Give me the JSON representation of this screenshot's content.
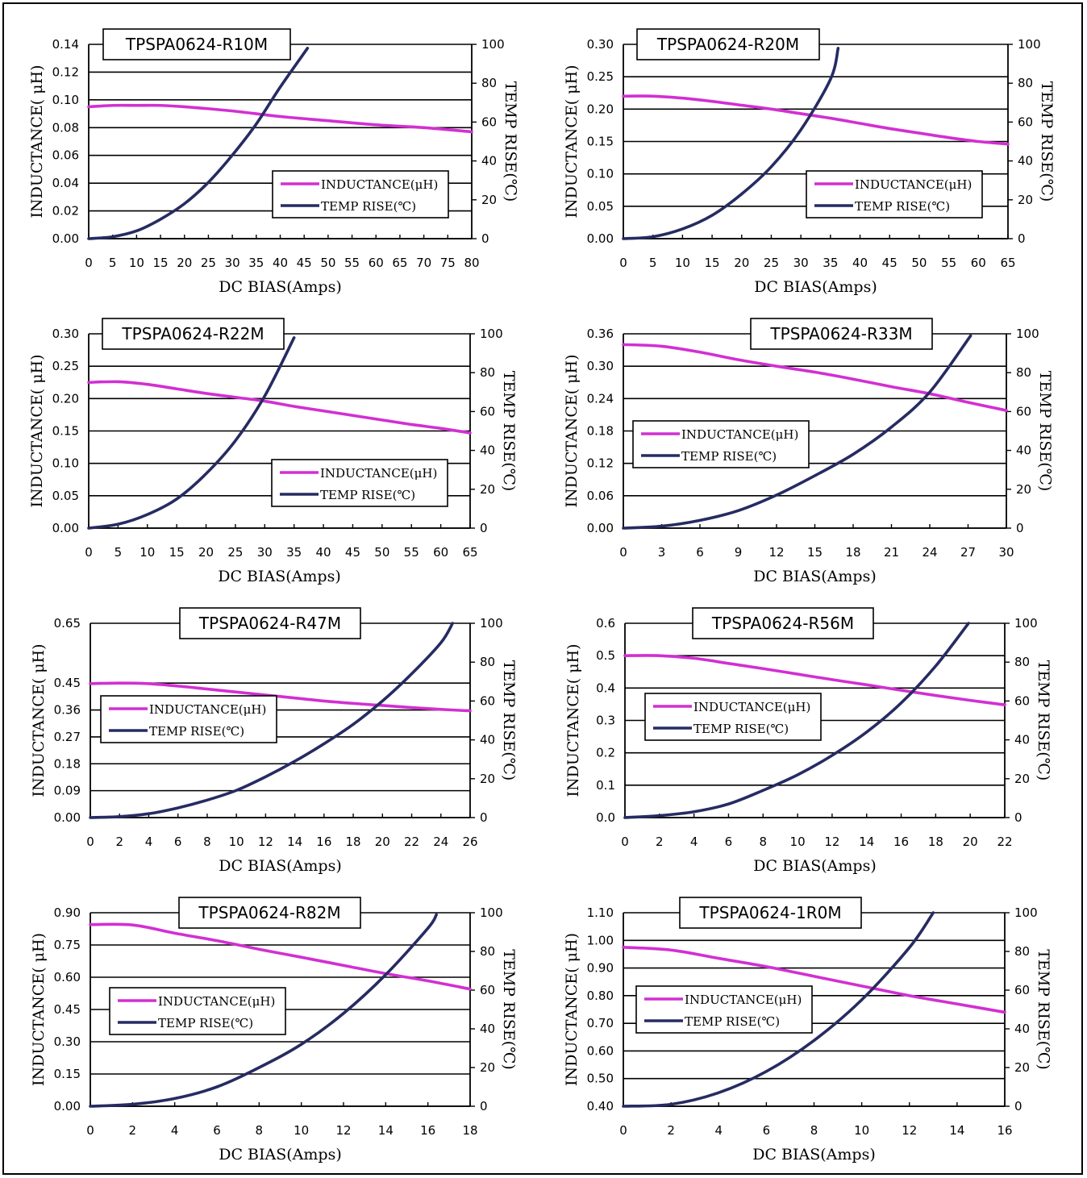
{
  "colors": {
    "inductance": "#d22fd2",
    "temp_rise": "#262b62",
    "grid": "#000000"
  },
  "chart_data": [
    {
      "type": "line",
      "title": "TPSPA0624-R10M",
      "xlabel": "DC BIAS(Amps)",
      "ylabel": "INDUCTANCE( μH)",
      "y2label": "TEMP RISE(℃)",
      "xlim": [
        0,
        80
      ],
      "ylim": [
        0,
        0.14
      ],
      "y2lim": [
        0,
        100
      ],
      "xticks": [
        "0",
        "5",
        "10",
        "15",
        "20",
        "25",
        "30",
        "35",
        "40",
        "45",
        "50",
        "55",
        "60",
        "65",
        "70",
        "75",
        "80"
      ],
      "yticks": [
        "0.00",
        "0.02",
        "0.04",
        "0.06",
        "0.08",
        "0.10",
        "0.12",
        "0.14"
      ],
      "y2ticks": [
        "0",
        "20",
        "40",
        "60",
        "80",
        "100"
      ],
      "legend": "center-right",
      "series": [
        {
          "name": "INDUCTANCE(μH)",
          "axis": "left",
          "x": [
            0,
            5,
            10,
            15,
            20,
            30,
            40,
            50,
            60,
            70,
            80
          ],
          "y": [
            0.095,
            0.096,
            0.096,
            0.096,
            0.095,
            0.092,
            0.088,
            0.085,
            0.082,
            0.08,
            0.077
          ]
        },
        {
          "name": "TEMP RISE(℃)",
          "axis": "right",
          "x": [
            0,
            5,
            10,
            15,
            20,
            25,
            30,
            35,
            40,
            45.7
          ],
          "y": [
            0,
            1,
            4,
            10,
            18,
            29,
            43,
            59,
            78,
            98
          ]
        }
      ]
    },
    {
      "type": "line",
      "title": "TPSPA0624-R20M",
      "xlabel": "DC BIAS(Amps)",
      "ylabel": "INDUCTANCE( μH)",
      "y2label": "TEMP RISE(℃)",
      "xlim": [
        0,
        65
      ],
      "ylim": [
        0,
        0.3
      ],
      "y2lim": [
        0,
        100
      ],
      "xticks": [
        "0",
        "5",
        "10",
        "15",
        "20",
        "25",
        "30",
        "35",
        "40",
        "45",
        "50",
        "55",
        "60",
        "65"
      ],
      "yticks": [
        "0.00",
        "0.05",
        "0.10",
        "0.15",
        "0.20",
        "0.25",
        "0.30"
      ],
      "y2ticks": [
        "0",
        "20",
        "40",
        "60",
        "80",
        "100"
      ],
      "legend": "center-right",
      "series": [
        {
          "name": "INDUCTANCE(μH)",
          "axis": "left",
          "x": [
            0,
            5,
            10,
            15,
            20,
            25,
            30,
            35,
            40,
            45,
            50,
            55,
            60,
            65
          ],
          "y": [
            0.22,
            0.22,
            0.217,
            0.212,
            0.206,
            0.2,
            0.193,
            0.186,
            0.178,
            0.17,
            0.163,
            0.156,
            0.15,
            0.146
          ]
        },
        {
          "name": "TEMP RISE(℃)",
          "axis": "right",
          "x": [
            0,
            5,
            10,
            15,
            20,
            25,
            30,
            35,
            36.3
          ],
          "y": [
            0,
            1,
            5,
            12,
            23,
            37,
            56,
            82,
            98
          ]
        }
      ]
    },
    {
      "type": "line",
      "title": "TPSPA0624-R22M",
      "xlabel": "DC BIAS(Amps)",
      "ylabel": "INDUCTANCE( μH)",
      "y2label": "TEMP RISE(℃)",
      "xlim": [
        0,
        65
      ],
      "ylim": [
        0,
        0.3
      ],
      "y2lim": [
        0,
        100
      ],
      "xticks": [
        "0",
        "5",
        "10",
        "15",
        "20",
        "25",
        "30",
        "35",
        "40",
        "45",
        "50",
        "55",
        "60",
        "65"
      ],
      "yticks": [
        "0.00",
        "0.05",
        "0.10",
        "0.15",
        "0.20",
        "0.25",
        "0.30"
      ],
      "y2ticks": [
        "0",
        "20",
        "40",
        "60",
        "80",
        "100"
      ],
      "legend": "center-right",
      "series": [
        {
          "name": "INDUCTANCE(μH)",
          "axis": "left",
          "x": [
            0,
            5,
            10,
            15,
            20,
            25,
            30,
            35,
            40,
            45,
            50,
            55,
            60,
            65
          ],
          "y": [
            0.225,
            0.226,
            0.222,
            0.215,
            0.208,
            0.202,
            0.196,
            0.188,
            0.181,
            0.174,
            0.167,
            0.16,
            0.154,
            0.147
          ]
        },
        {
          "name": "TEMP RISE(℃)",
          "axis": "right",
          "x": [
            0,
            5,
            10,
            15,
            20,
            25,
            30,
            35
          ],
          "y": [
            0,
            2,
            7,
            15,
            28,
            45,
            68,
            98
          ]
        }
      ]
    },
    {
      "type": "line",
      "title": "TPSPA0624-R33M",
      "xlabel": "DC BIAS(Amps)",
      "ylabel": "INDUCTANCE( μH)",
      "y2label": "TEMP RISE(℃)",
      "xlim": [
        0,
        30
      ],
      "ylim": [
        0,
        0.36
      ],
      "y2lim": [
        0,
        100
      ],
      "xticks": [
        "0",
        "3",
        "6",
        "9",
        "12",
        "15",
        "18",
        "21",
        "24",
        "27",
        "30"
      ],
      "yticks": [
        "0.00",
        "0.06",
        "0.12",
        "0.18",
        "0.24",
        "0.30",
        "0.36"
      ],
      "y2ticks": [
        "0",
        "20",
        "40",
        "60",
        "80",
        "100"
      ],
      "legend": "center-left",
      "series": [
        {
          "name": "INDUCTANCE(μH)",
          "axis": "left",
          "x": [
            0,
            3,
            6,
            9,
            12,
            15,
            18,
            21,
            24,
            27,
            30
          ],
          "y": [
            0.34,
            0.337,
            0.326,
            0.312,
            0.3,
            0.289,
            0.276,
            0.262,
            0.249,
            0.233,
            0.218
          ]
        },
        {
          "name": "TEMP RISE(℃)",
          "axis": "right",
          "x": [
            0,
            3,
            6,
            9,
            12,
            15,
            18,
            21,
            24,
            27.2
          ],
          "y": [
            0,
            1,
            4,
            9,
            17,
            27,
            38,
            52,
            70,
            99
          ]
        }
      ]
    },
    {
      "type": "line",
      "title": "TPSPA0624-R47M",
      "xlabel": "DC BIAS(Amps)",
      "ylabel": "INDUCTANCE( μH)",
      "y2label": "TEMP RISE(℃)",
      "xlim": [
        0,
        26
      ],
      "ylim": [
        0,
        0.65
      ],
      "y2lim": [
        0,
        100
      ],
      "xticks": [
        "0",
        "2",
        "4",
        "6",
        "8",
        "10",
        "12",
        "14",
        "16",
        "18",
        "20",
        "22",
        "24",
        "26"
      ],
      "yticks": [
        "0.00",
        "0.09",
        "0.18",
        "0.27",
        "0.36",
        "0.45",
        "0.65"
      ],
      "yticks_values": [
        0,
        0.09,
        0.18,
        0.27,
        0.36,
        0.45,
        0.65
      ],
      "y2ticks": [
        "0",
        "20",
        "40",
        "60",
        "80",
        "100"
      ],
      "legend": "center-left",
      "series": [
        {
          "name": "INDUCTANCE(μH)",
          "axis": "left",
          "x": [
            0,
            2,
            4,
            6,
            8,
            10,
            12,
            14,
            16,
            18,
            20,
            22,
            24,
            26
          ],
          "y": [
            0.448,
            0.45,
            0.448,
            0.44,
            0.43,
            0.42,
            0.41,
            0.4,
            0.39,
            0.382,
            0.375,
            0.368,
            0.362,
            0.357
          ]
        },
        {
          "name": "TEMP RISE(℃)",
          "axis": "right",
          "x": [
            0,
            2,
            4,
            6,
            8,
            10,
            12,
            14,
            16,
            18,
            20,
            22,
            24,
            24.8
          ],
          "y": [
            0,
            0.5,
            2,
            5,
            9,
            14,
            21,
            29,
            38,
            48,
            60,
            74,
            90,
            100
          ]
        }
      ]
    },
    {
      "type": "line",
      "title": "TPSPA0624-R56M",
      "xlabel": "DC BIAS(Amps)",
      "ylabel": "INDUCTANCE( μH)",
      "y2label": "TEMP RISE(℃)",
      "xlim": [
        0,
        22
      ],
      "ylim": [
        0,
        0.6
      ],
      "y2lim": [
        0,
        100
      ],
      "xticks": [
        "0",
        "2",
        "4",
        "6",
        "8",
        "10",
        "12",
        "14",
        "16",
        "18",
        "20",
        "22"
      ],
      "yticks": [
        "0.0",
        "0.1",
        "0.2",
        "0.3",
        "0.4",
        "0.5",
        "0.6"
      ],
      "y2ticks": [
        "0",
        "20",
        "40",
        "60",
        "80",
        "100"
      ],
      "legend": "center-left",
      "series": [
        {
          "name": "INDUCTANCE(μH)",
          "axis": "left",
          "x": [
            0,
            2,
            4,
            6,
            8,
            10,
            12,
            14,
            16,
            18,
            20,
            22
          ],
          "y": [
            0.5,
            0.5,
            0.492,
            0.476,
            0.46,
            0.443,
            0.426,
            0.41,
            0.393,
            0.377,
            0.362,
            0.348
          ]
        },
        {
          "name": "TEMP RISE(℃)",
          "axis": "right",
          "x": [
            0,
            2,
            4,
            6,
            8,
            10,
            12,
            14,
            16,
            18,
            19.9
          ],
          "y": [
            0,
            1,
            3,
            7,
            14,
            22,
            32,
            44,
            59,
            78,
            100
          ]
        }
      ]
    },
    {
      "type": "line",
      "title": "TPSPA0624-R82M",
      "xlabel": "DC BIAS(Amps)",
      "ylabel": "INDUCTANCE( μH)",
      "y2label": "TEMP RISE(℃)",
      "xlim": [
        0,
        18
      ],
      "ylim": [
        0,
        0.9
      ],
      "y2lim": [
        0,
        100
      ],
      "xticks": [
        "0",
        "2",
        "4",
        "6",
        "8",
        "10",
        "12",
        "14",
        "16",
        "18"
      ],
      "yticks": [
        "0.00",
        "0.15",
        "0.30",
        "0.45",
        "0.60",
        "0.75",
        "0.90"
      ],
      "y2ticks": [
        "0",
        "20",
        "40",
        "60",
        "80",
        "100"
      ],
      "legend": "center-left",
      "series": [
        {
          "name": "INDUCTANCE(μH)",
          "axis": "left",
          "x": [
            0,
            2,
            4,
            6,
            8,
            10,
            12,
            14,
            16,
            18
          ],
          "y": [
            0.845,
            0.843,
            0.805,
            0.77,
            0.73,
            0.693,
            0.655,
            0.617,
            0.583,
            0.545
          ]
        },
        {
          "name": "TEMP RISE(℃)",
          "axis": "right",
          "x": [
            0,
            2,
            4,
            6,
            8,
            10,
            12,
            14,
            16,
            16.4
          ],
          "y": [
            0,
            1,
            4,
            10,
            20,
            32,
            48,
            68,
            92,
            99
          ]
        }
      ]
    },
    {
      "type": "line",
      "title": "TPSPA0624-1R0M",
      "xlabel": "DC BIAS(Amps)",
      "ylabel": "INDUCTANCE( μH)",
      "y2label": "TEMP RISE(℃)",
      "xlim": [
        0,
        16
      ],
      "ylim": [
        0.4,
        1.1
      ],
      "y2lim": [
        0,
        100
      ],
      "xticks": [
        "0",
        "2",
        "4",
        "6",
        "8",
        "10",
        "12",
        "14",
        "16"
      ],
      "yticks": [
        "0.40",
        "0.50",
        "0.60",
        "0.70",
        "0.80",
        "0.90",
        "1.00",
        "1.10"
      ],
      "y2ticks": [
        "0",
        "20",
        "40",
        "60",
        "80",
        "100"
      ],
      "legend": "center-left",
      "series": [
        {
          "name": "INDUCTANCE(μH)",
          "axis": "left",
          "x": [
            0,
            2,
            4,
            6,
            8,
            10,
            12,
            14,
            16
          ],
          "y": [
            0.975,
            0.965,
            0.935,
            0.905,
            0.87,
            0.835,
            0.8,
            0.77,
            0.74
          ]
        },
        {
          "name": "TEMP RISE(℃)",
          "axis": "right",
          "x": [
            0,
            2,
            4,
            6,
            8,
            10,
            12,
            13.0
          ],
          "y": [
            0,
            1,
            7,
            18,
            34,
            55,
            82,
            100
          ]
        }
      ]
    }
  ]
}
